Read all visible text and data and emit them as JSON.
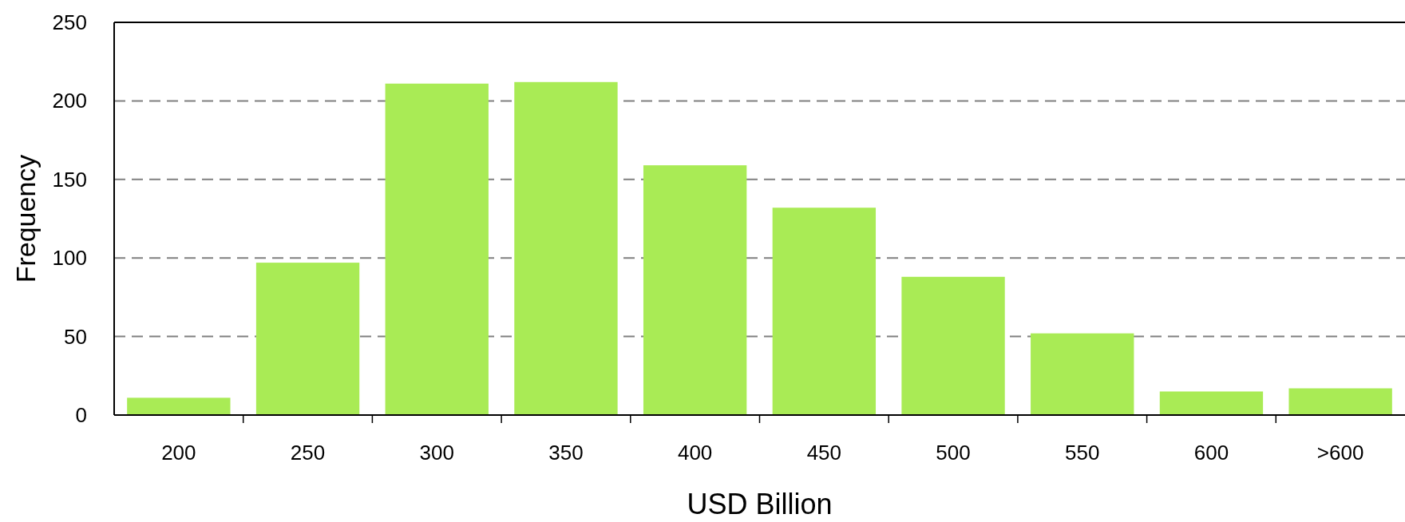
{
  "chart_data": {
    "type": "bar",
    "xlabel": "USD Billion",
    "ylabel": "Frequency",
    "categories": [
      "200",
      "250",
      "300",
      "350",
      "400",
      "450",
      "500",
      "550",
      "600",
      ">600"
    ],
    "values": [
      11,
      97,
      211,
      212,
      159,
      132,
      88,
      52,
      15,
      17
    ],
    "color": "#a9eb55",
    "ylim": [
      0,
      250
    ],
    "yticks": [
      0,
      50,
      100,
      150,
      200,
      250
    ],
    "grid": "y"
  }
}
